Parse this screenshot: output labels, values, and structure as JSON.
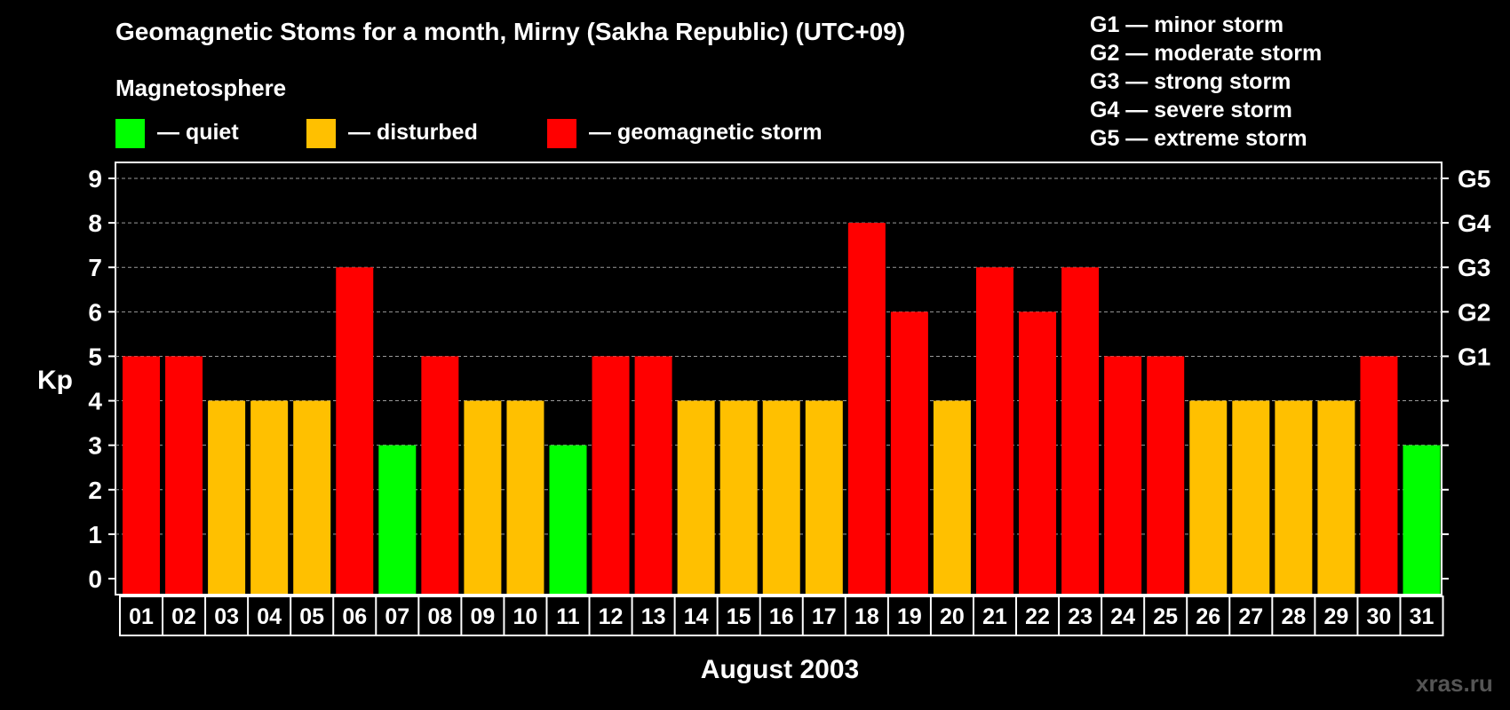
{
  "chart_data": {
    "type": "bar",
    "title": "Geomagnetic Stoms for a month, Mirny (Sakha Republic) (UTC+09)",
    "legend_title": "Magnetosphere",
    "legend": [
      {
        "label": "— quiet",
        "color": "#00ff00"
      },
      {
        "label": "— disturbed",
        "color": "#ffc000"
      },
      {
        "label": "— geomagnetic storm",
        "color": "#ff0000"
      }
    ],
    "storm_scale": [
      "G1 — minor storm",
      "G2 — moderate storm",
      "G3 — strong storm",
      "G4 — severe storm",
      "G5 — extreme storm"
    ],
    "ylabel": "Kp",
    "xlabel": "August 2003",
    "ylim": [
      0,
      9
    ],
    "y_ticks": [
      "0",
      "1",
      "2",
      "3",
      "4",
      "5",
      "6",
      "7",
      "8",
      "9"
    ],
    "right_axis_labels": [
      {
        "kp": 5,
        "label": "G1"
      },
      {
        "kp": 6,
        "label": "G2"
      },
      {
        "kp": 7,
        "label": "G3"
      },
      {
        "kp": 8,
        "label": "G4"
      },
      {
        "kp": 9,
        "label": "G5"
      }
    ],
    "categories": [
      "01",
      "02",
      "03",
      "04",
      "05",
      "06",
      "07",
      "08",
      "09",
      "10",
      "11",
      "12",
      "13",
      "14",
      "15",
      "16",
      "17",
      "18",
      "19",
      "20",
      "21",
      "22",
      "23",
      "24",
      "25",
      "26",
      "27",
      "28",
      "29",
      "30",
      "31"
    ],
    "values": [
      5,
      5,
      4,
      4,
      4,
      7,
      3,
      5,
      4,
      4,
      3,
      5,
      5,
      4,
      4,
      4,
      4,
      8,
      6,
      4,
      7,
      6,
      7,
      5,
      5,
      4,
      4,
      4,
      4,
      5,
      3
    ],
    "colors": {
      "quiet": "#00ff00",
      "disturbed": "#ffc000",
      "storm": "#ff0000"
    },
    "grid": "dashed horizontal at each Kp level"
  },
  "watermark": "xras.ru"
}
